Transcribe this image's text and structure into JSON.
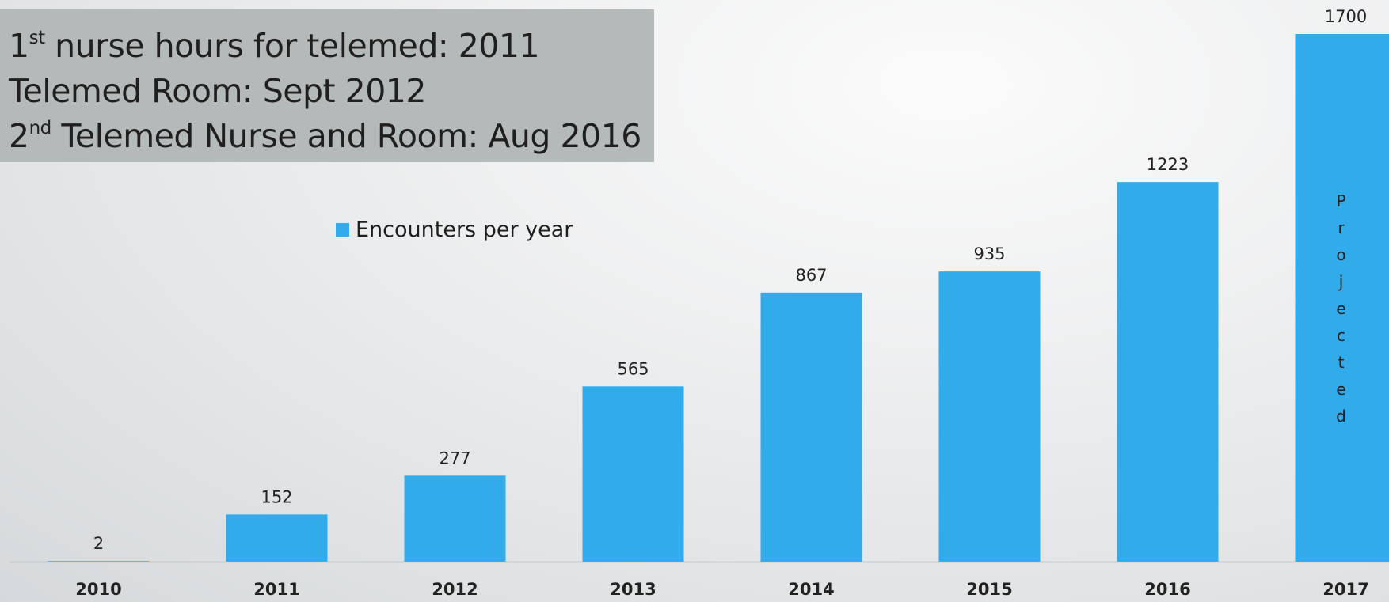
{
  "notes": {
    "line1": {
      "pre": "1",
      "sup": "st",
      "post": " nurse hours for telemed: 2011"
    },
    "line2": {
      "text": "Telemed Room:  Sept 2012"
    },
    "line3": {
      "pre": "2",
      "sup": "nd",
      "post": " Telemed Nurse and Room:  Aug 2016"
    }
  },
  "colors": {
    "bar": "#31abea",
    "axis": "#c9cdd0",
    "label": "#222222"
  },
  "chart_data": {
    "type": "bar",
    "categories": [
      "2010",
      "2011",
      "2012",
      "2013",
      "2014",
      "2015",
      "2016",
      "2017"
    ],
    "series": [
      {
        "name": "Encounters per year",
        "values": [
          2,
          152,
          277,
          565,
          867,
          935,
          1223,
          1700
        ]
      }
    ],
    "data_labels": [
      "2",
      "152",
      "277",
      "565",
      "867",
      "935",
      "1223",
      "1700"
    ],
    "annotations": [
      {
        "category": "2017",
        "text": "Projected",
        "orientation": "stacked-vertical"
      }
    ],
    "ylim": [
      0,
      1700
    ],
    "grid": false,
    "legend_position": "top-center",
    "xlabel": "",
    "ylabel": ""
  }
}
